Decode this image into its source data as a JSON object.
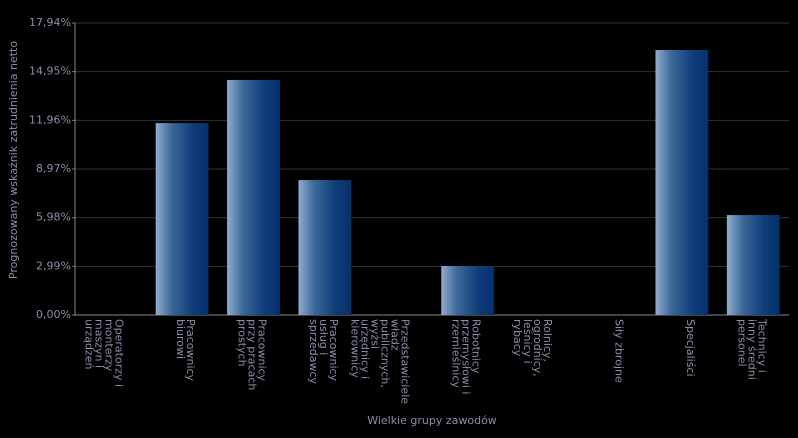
{
  "chart_data": {
    "type": "bar",
    "x_label": "Wielkie grupy zawodów",
    "y_label": "Prognozowany wskaźnik zatrudnienia netto",
    "categories": [
      "Operatorzy i monterzy maszyn i urządzeń",
      "Pracownicy biurowi",
      "Pracownicy przy pracach prostych",
      "Pracownicy usług i sprzedawcy",
      "Przedstawiciele władz publicznych, wyżsi urzędnicy i kierownicy",
      "Robotnicy przemysłowi i rzemieślnicy",
      "Rolnicy, ogrodnicy, leśnicy i rybacy",
      "Siły zbrojne",
      "Specjaliści",
      "Technicy i inny średni personel"
    ],
    "values": [
      0,
      11.79,
      14.44,
      8.29,
      0,
      3.01,
      0,
      0,
      16.28,
      6.14
    ],
    "color": "#0c3a78",
    "ylim": [
      0,
      17.94
    ],
    "yticks": [
      {
        "value": 0,
        "label": "0,00%"
      },
      {
        "value": 2.99,
        "label": "2,99%"
      },
      {
        "value": 5.98,
        "label": "5,98%"
      },
      {
        "value": 8.97,
        "label": "8,97%"
      },
      {
        "value": 11.96,
        "label": "11,96%"
      },
      {
        "value": 14.95,
        "label": "14,95%"
      },
      {
        "value": 17.94,
        "label": "17,94%"
      }
    ],
    "grid": true
  }
}
